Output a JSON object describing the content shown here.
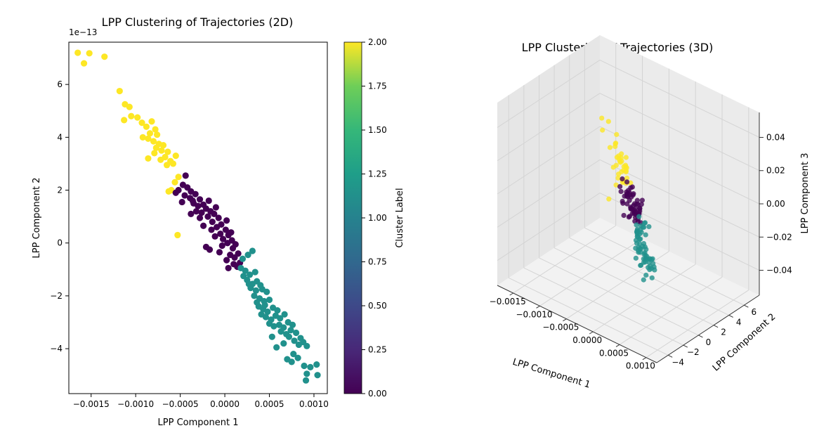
{
  "colors": {
    "cluster_0": "#440154",
    "cluster_1": "#21918c",
    "cluster_2": "#fde725",
    "axis": "#000000",
    "grid": "#d9d9d9",
    "pane": "#f2f2f2"
  },
  "chart_data": [
    {
      "type": "scatter",
      "title": "LPP Clustering of Trajectories (2D)",
      "xlabel": "LPP Component 1",
      "ylabel": "LPP Component 2",
      "y_offset_text": "1e−13",
      "xlim": [
        -0.00175,
        0.00115
      ],
      "ylim": [
        -5.7,
        7.6
      ],
      "x_ticks": [
        -0.0015,
        -0.001,
        -0.0005,
        0.0,
        0.0005,
        0.001
      ],
      "x_tick_labels": [
        "−0.0015",
        "−0.0010",
        "−0.0005",
        "0.0000",
        "0.0005",
        "0.0010"
      ],
      "y_ticks": [
        -4,
        -2,
        0,
        2,
        4,
        6
      ],
      "y_tick_labels": [
        "−4",
        "−2",
        "0",
        "2",
        "4",
        "6"
      ],
      "grid": false,
      "colorbar": {
        "label": "Cluster Label",
        "range": [
          0.0,
          2.0
        ],
        "colormap": "viridis",
        "ticks": [
          0.0,
          0.25,
          0.5,
          0.75,
          1.0,
          1.25,
          1.5,
          1.75,
          2.0
        ],
        "tick_labels": [
          "0.00",
          "0.25",
          "0.50",
          "0.75",
          "1.00",
          "1.25",
          "1.50",
          "1.75",
          "2.00"
        ]
      },
      "series": [
        {
          "cluster": 2,
          "color": "#fde725",
          "points": [
            [
              -0.00165,
              7.2
            ],
            [
              -0.00152,
              7.18
            ],
            [
              -0.00158,
              6.8
            ],
            [
              -0.00135,
              7.05
            ],
            [
              -0.00118,
              5.75
            ],
            [
              -0.00112,
              5.25
            ],
            [
              -0.00107,
              5.15
            ],
            [
              -0.00105,
              4.8
            ],
            [
              -0.00113,
              4.65
            ],
            [
              -0.00098,
              4.75
            ],
            [
              -0.00093,
              4.55
            ],
            [
              -0.00088,
              4.4
            ],
            [
              -0.00082,
              4.6
            ],
            [
              -0.00078,
              4.3
            ],
            [
              -0.00076,
              4.1
            ],
            [
              -0.00092,
              4.0
            ],
            [
              -0.00086,
              3.95
            ],
            [
              -0.0008,
              3.85
            ],
            [
              -0.00074,
              3.75
            ],
            [
              -0.00071,
              3.5
            ],
            [
              -0.00079,
              3.4
            ],
            [
              -0.00067,
              3.25
            ],
            [
              -0.00061,
              3.1
            ],
            [
              -0.00058,
              3.0
            ],
            [
              -0.00065,
              2.95
            ],
            [
              -0.00086,
              3.2
            ],
            [
              -0.00072,
              3.15
            ],
            [
              -0.00055,
              3.3
            ],
            [
              -0.00052,
              2.5
            ],
            [
              -0.00056,
              2.3
            ],
            [
              -0.0006,
              2.0
            ],
            [
              -0.00063,
              1.95
            ],
            [
              -0.00053,
              0.3
            ],
            [
              -0.00077,
              3.6
            ],
            [
              -0.00069,
              3.7
            ],
            [
              -0.00064,
              3.45
            ],
            [
              -0.00084,
              4.15
            ]
          ]
        },
        {
          "cluster": 0,
          "color": "#440154",
          "points": [
            [
              -0.00044,
              2.55
            ],
            [
              -0.00047,
              2.2
            ],
            [
              -0.00052,
              2.0
            ],
            [
              -0.00042,
              2.1
            ],
            [
              -0.00038,
              1.95
            ],
            [
              -0.00045,
              1.8
            ],
            [
              -0.00039,
              1.7
            ],
            [
              -0.00033,
              1.85
            ],
            [
              -0.00028,
              1.65
            ],
            [
              -0.00035,
              1.5
            ],
            [
              -0.0003,
              1.4
            ],
            [
              -0.00024,
              1.45
            ],
            [
              -0.00018,
              1.6
            ],
            [
              -0.00021,
              1.3
            ],
            [
              -0.00026,
              1.15
            ],
            [
              -0.00016,
              1.2
            ],
            [
              -0.0001,
              1.35
            ],
            [
              -0.00012,
              1.1
            ],
            [
              -0.00019,
              1.0
            ],
            [
              -7e-05,
              0.95
            ],
            [
              -0.00014,
              0.8
            ],
            [
              -4e-05,
              0.7
            ],
            [
              -9e-05,
              0.6
            ],
            [
              2e-05,
              0.85
            ],
            [
              1e-05,
              0.5
            ],
            [
              -5e-05,
              0.35
            ],
            [
              4e-05,
              0.3
            ],
            [
              -0.00011,
              0.25
            ],
            [
              8e-05,
              0.1
            ],
            [
              3e-05,
              0.0
            ],
            [
              -3e-05,
              -0.1
            ],
            [
              9e-05,
              -0.2
            ],
            [
              0.00012,
              -0.05
            ],
            [
              -0.00021,
              -0.15
            ],
            [
              -0.00017,
              -0.25
            ],
            [
              -6e-05,
              -0.35
            ],
            [
              6e-05,
              -0.45
            ],
            [
              0.00011,
              -0.55
            ],
            [
              0.00015,
              -0.4
            ],
            [
              2e-05,
              -0.65
            ],
            [
              0.0001,
              -0.8
            ],
            [
              0.00014,
              -0.9
            ],
            [
              4e-05,
              -0.95
            ],
            [
              -0.00032,
              1.2
            ],
            [
              -0.00038,
              1.1
            ],
            [
              -0.00048,
              1.55
            ],
            [
              -0.00055,
              1.9
            ],
            [
              -0.00028,
              0.95
            ],
            [
              -0.00015,
              0.5
            ],
            [
              0.00017,
              -0.75
            ],
            [
              -0.00024,
              0.65
            ],
            [
              -0.00036,
              1.6
            ],
            [
              7e-05,
              0.4
            ],
            [
              -2e-05,
              0.15
            ]
          ]
        },
        {
          "cluster": 1,
          "color": "#21918c",
          "points": [
            [
              0.0002,
              -0.6
            ],
            [
              0.00026,
              -0.45
            ],
            [
              0.00031,
              -0.3
            ],
            [
              0.00018,
              -0.95
            ],
            [
              0.00023,
              -1.05
            ],
            [
              0.00028,
              -1.2
            ],
            [
              0.00034,
              -1.1
            ],
            [
              0.00021,
              -1.25
            ],
            [
              0.00025,
              -1.4
            ],
            [
              0.00031,
              -1.55
            ],
            [
              0.00036,
              -1.45
            ],
            [
              0.0004,
              -1.6
            ],
            [
              0.00029,
              -1.7
            ],
            [
              0.00035,
              -1.8
            ],
            [
              0.00042,
              -1.75
            ],
            [
              0.00047,
              -1.85
            ],
            [
              0.00033,
              -2.0
            ],
            [
              0.00039,
              -2.1
            ],
            [
              0.00044,
              -2.2
            ],
            [
              0.0005,
              -2.15
            ],
            [
              0.00038,
              -2.4
            ],
            [
              0.00043,
              -2.5
            ],
            [
              0.00048,
              -2.6
            ],
            [
              0.00054,
              -2.45
            ],
            [
              0.00059,
              -2.55
            ],
            [
              0.00041,
              -2.7
            ],
            [
              0.00046,
              -2.8
            ],
            [
              0.00052,
              -2.9
            ],
            [
              0.00057,
              -2.75
            ],
            [
              0.00062,
              -2.85
            ],
            [
              0.00067,
              -2.7
            ],
            [
              0.0005,
              -3.05
            ],
            [
              0.00055,
              -3.15
            ],
            [
              0.00061,
              -3.1
            ],
            [
              0.00066,
              -3.2
            ],
            [
              0.00071,
              -3.0
            ],
            [
              0.00076,
              -3.1
            ],
            [
              0.00063,
              -3.35
            ],
            [
              0.00069,
              -3.45
            ],
            [
              0.00074,
              -3.3
            ],
            [
              0.0008,
              -3.4
            ],
            [
              0.00085,
              -3.6
            ],
            [
              0.00078,
              -3.7
            ],
            [
              0.00072,
              -3.55
            ],
            [
              0.00083,
              -3.85
            ],
            [
              0.00088,
              -3.75
            ],
            [
              0.00092,
              -3.9
            ],
            [
              0.00066,
              -3.8
            ],
            [
              0.00058,
              -3.95
            ],
            [
              0.00077,
              -4.2
            ],
            [
              0.00082,
              -4.35
            ],
            [
              0.00075,
              -4.5
            ],
            [
              0.00089,
              -4.65
            ],
            [
              0.00096,
              -4.7
            ],
            [
              0.00103,
              -4.6
            ],
            [
              0.00092,
              -4.95
            ],
            [
              0.00104,
              -5.0
            ],
            [
              0.00091,
              -5.2
            ],
            [
              0.0007,
              -4.4
            ],
            [
              0.00045,
              -2.35
            ],
            [
              0.00053,
              -3.55
            ],
            [
              0.00036,
              -2.25
            ],
            [
              0.00027,
              -1.55
            ]
          ]
        }
      ]
    },
    {
      "type": "scatter3d",
      "title": "LPP Clustering of Trajectories (3D)",
      "xlabel": "LPP Component 1",
      "ylabel": "LPP Component 2",
      "zlabel": "LPP Component 3",
      "xlim": [
        -0.0018,
        0.0012
      ],
      "ylim": [
        -5.5,
        8.0
      ],
      "zlim": [
        -0.055,
        0.055
      ],
      "x_ticks": [
        -0.0015,
        -0.001,
        -0.0005,
        0.0,
        0.0005,
        0.001
      ],
      "x_tick_labels": [
        "−0.0015",
        "−0.0010",
        "−0.0005",
        "0.0000",
        "0.0005",
        "0.0010"
      ],
      "y_ticks": [
        -4,
        -2,
        0,
        2,
        4,
        6
      ],
      "y_tick_labels": [
        "−4",
        "−2",
        "0",
        "2",
        "4",
        "6"
      ],
      "z_ticks": [
        -0.04,
        -0.02,
        0.0,
        0.02,
        0.04
      ],
      "z_tick_labels": [
        "−0.04",
        "−0.02",
        "0.00",
        "0.02",
        "0.04"
      ],
      "grid": true
    }
  ]
}
